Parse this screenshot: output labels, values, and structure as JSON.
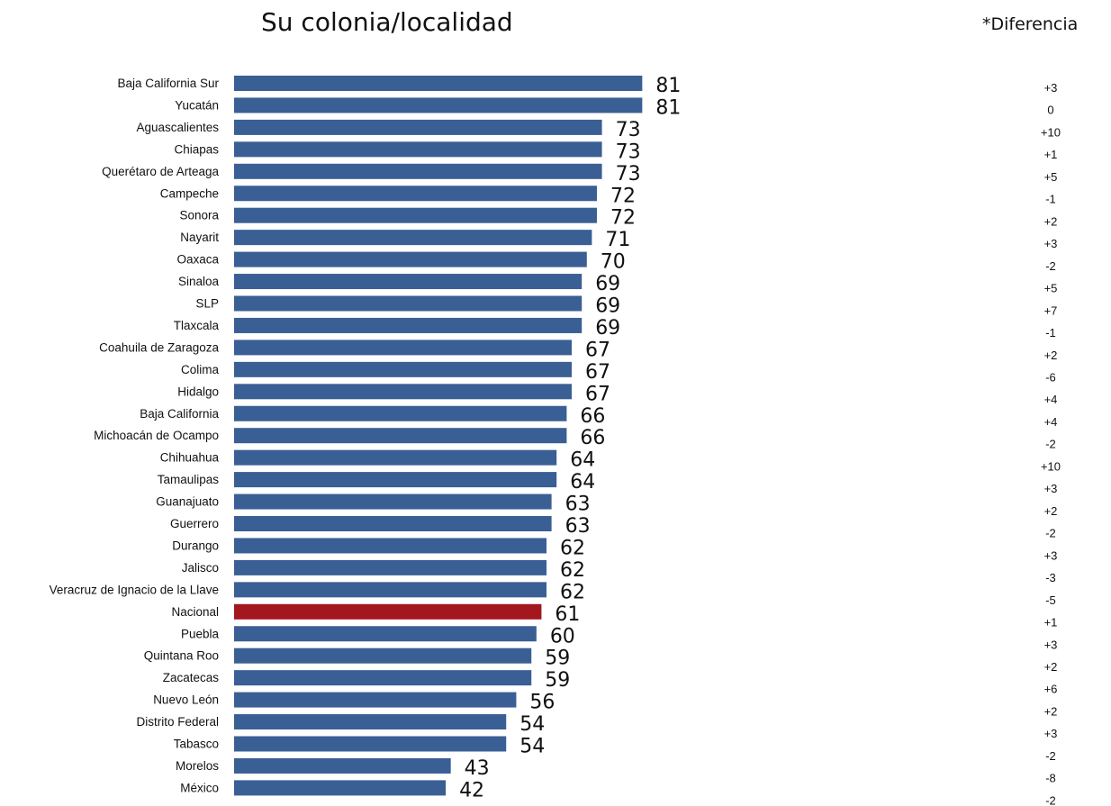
{
  "colors": {
    "bar": "#3a5f94",
    "highlight": "#a4171f"
  },
  "chart_data": {
    "type": "bar",
    "orientation": "horizontal",
    "title": "Su colonia/localidad",
    "diff_title": "*Diferencia",
    "highlight_category": "Nacional",
    "xlim": [
      0,
      100
    ],
    "categories": [
      "Baja California Sur",
      "Yucatán",
      "Aguascalientes",
      "Chiapas",
      "Querétaro de Arteaga",
      "Campeche",
      "Sonora",
      "Nayarit",
      "Oaxaca",
      "Sinaloa",
      "SLP",
      "Tlaxcala",
      "Coahuila de Zaragoza",
      "Colima",
      "Hidalgo",
      "Baja California",
      "Michoacán de Ocampo",
      "Chihuahua",
      "Tamaulipas",
      "Guanajuato",
      "Guerrero",
      "Durango",
      "Jalisco",
      "Veracruz de Ignacio de la Llave",
      "Nacional",
      "Puebla",
      "Quintana Roo",
      "Zacatecas",
      "Nuevo León",
      "Distrito Federal",
      "Tabasco",
      "Morelos",
      "México"
    ],
    "values": [
      81,
      81,
      73,
      73,
      73,
      72,
      72,
      71,
      70,
      69,
      69,
      69,
      67,
      67,
      67,
      66,
      66,
      64,
      64,
      63,
      63,
      62,
      62,
      62,
      61,
      60,
      59,
      59,
      56,
      54,
      54,
      43,
      42
    ],
    "differences": [
      "+3",
      "0",
      "+10",
      "+1",
      "+5",
      "-1",
      "+2",
      "+3",
      "-2",
      "+5",
      "+7",
      "-1",
      "+2",
      "-6",
      "+4",
      "+4",
      "-2",
      "+10",
      "+3",
      "+2",
      "-2",
      "+3",
      "-3",
      "-5",
      "+1",
      "+3",
      "+2",
      "+6",
      "+2",
      "+3",
      "-2",
      "-8",
      "-2"
    ]
  }
}
